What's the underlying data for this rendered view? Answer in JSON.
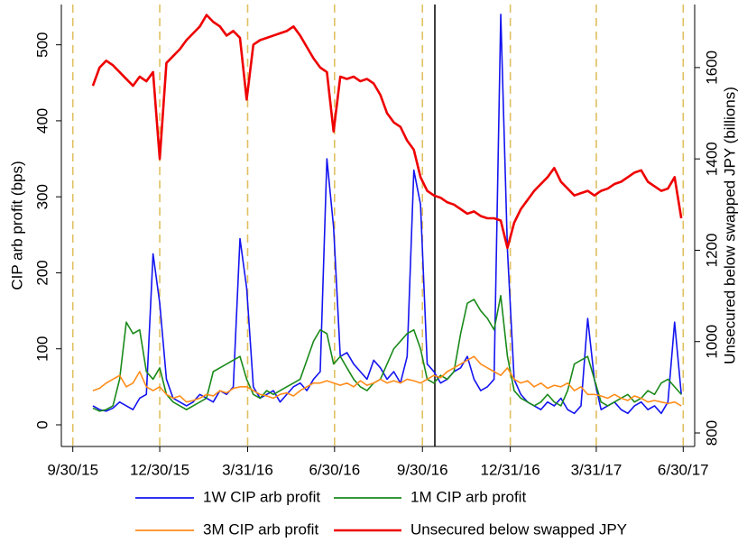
{
  "chart_data": {
    "type": "line",
    "y_label": "CIP arb profit (bps)",
    "y2_label": "Unsecured below swapped JPY (billions)",
    "x": [
      "2015-10-21",
      "2015-10-28",
      "2015-11-04",
      "2015-11-11",
      "2015-11-18",
      "2015-11-25",
      "2015-12-02",
      "2015-12-09",
      "2015-12-16",
      "2015-12-23",
      "2015-12-30",
      "2016-01-06",
      "2016-01-13",
      "2016-01-20",
      "2016-01-27",
      "2016-02-03",
      "2016-02-10",
      "2016-02-17",
      "2016-02-24",
      "2016-03-02",
      "2016-03-09",
      "2016-03-16",
      "2016-03-23",
      "2016-03-30",
      "2016-04-06",
      "2016-04-13",
      "2016-04-20",
      "2016-04-27",
      "2016-05-04",
      "2016-05-11",
      "2016-05-18",
      "2016-05-25",
      "2016-06-01",
      "2016-06-08",
      "2016-06-15",
      "2016-06-22",
      "2016-06-29",
      "2016-07-06",
      "2016-07-13",
      "2016-07-20",
      "2016-07-27",
      "2016-08-03",
      "2016-08-10",
      "2016-08-17",
      "2016-08-24",
      "2016-08-31",
      "2016-09-07",
      "2016-09-14",
      "2016-09-21",
      "2016-09-28",
      "2016-10-05",
      "2016-10-12",
      "2016-10-19",
      "2016-10-26",
      "2016-11-02",
      "2016-11-09",
      "2016-11-16",
      "2016-11-23",
      "2016-11-30",
      "2016-12-07",
      "2016-12-14",
      "2016-12-21",
      "2016-12-28",
      "2017-01-04",
      "2017-01-11",
      "2017-01-18",
      "2017-01-25",
      "2017-02-01",
      "2017-02-08",
      "2017-02-15",
      "2017-02-22",
      "2017-03-01",
      "2017-03-08",
      "2017-03-15",
      "2017-03-22",
      "2017-03-29",
      "2017-04-05",
      "2017-04-12",
      "2017-04-19",
      "2017-04-26",
      "2017-05-03",
      "2017-05-10",
      "2017-05-17",
      "2017-05-24",
      "2017-05-31",
      "2017-06-07",
      "2017-06-14",
      "2017-06-21",
      "2017-06-28"
    ],
    "series": [
      {
        "name": "1W CIP arb profit",
        "color": "#1414f0",
        "values": [
          25,
          20,
          18,
          22,
          30,
          25,
          20,
          35,
          40,
          225,
          160,
          60,
          35,
          30,
          25,
          30,
          40,
          35,
          30,
          45,
          40,
          50,
          245,
          180,
          50,
          35,
          40,
          45,
          30,
          40,
          50,
          55,
          45,
          60,
          70,
          350,
          260,
          90,
          95,
          80,
          70,
          60,
          85,
          75,
          60,
          70,
          55,
          90,
          335,
          290,
          80,
          70,
          55,
          60,
          70,
          75,
          90,
          60,
          45,
          50,
          60,
          540,
          230,
          60,
          40,
          30,
          25,
          20,
          30,
          25,
          35,
          20,
          15,
          25,
          140,
          60,
          20,
          25,
          30,
          20,
          15,
          25,
          30,
          20,
          25,
          15,
          30,
          135,
          40
        ]
      },
      {
        "name": "1M CIP arb profit",
        "color": "#1a8a1a",
        "values": [
          22,
          18,
          20,
          25,
          60,
          135,
          120,
          125,
          70,
          60,
          75,
          40,
          30,
          25,
          20,
          25,
          30,
          35,
          70,
          75,
          80,
          85,
          90,
          60,
          40,
          35,
          45,
          40,
          45,
          50,
          55,
          60,
          85,
          110,
          125,
          120,
          80,
          90,
          75,
          60,
          50,
          45,
          55,
          60,
          80,
          100,
          110,
          120,
          125,
          100,
          60,
          55,
          65,
          60,
          70,
          120,
          160,
          165,
          150,
          140,
          125,
          170,
          90,
          45,
          35,
          30,
          25,
          30,
          40,
          30,
          25,
          45,
          80,
          85,
          90,
          60,
          30,
          25,
          30,
          35,
          40,
          30,
          35,
          45,
          40,
          55,
          60,
          50,
          40
        ]
      },
      {
        "name": "3M CIP arb profit",
        "color": "#ff8c1a",
        "values": [
          45,
          48,
          55,
          60,
          65,
          50,
          55,
          70,
          50,
          45,
          50,
          40,
          35,
          38,
          30,
          32,
          35,
          40,
          38,
          45,
          42,
          48,
          50,
          50,
          45,
          40,
          38,
          35,
          40,
          42,
          38,
          45,
          50,
          55,
          55,
          58,
          55,
          52,
          55,
          50,
          58,
          52,
          55,
          60,
          55,
          58,
          55,
          60,
          58,
          55,
          60,
          65,
          62,
          70,
          75,
          80,
          85,
          90,
          80,
          75,
          70,
          65,
          75,
          60,
          55,
          58,
          50,
          55,
          48,
          52,
          50,
          55,
          45,
          50,
          40,
          40,
          38,
          35,
          40,
          35,
          32,
          38,
          35,
          30,
          32,
          30,
          28,
          30,
          25
        ]
      },
      {
        "name": "Unsecured below swapped JPY",
        "color": "#ee0000",
        "axis": "y2",
        "values": [
          1560,
          1600,
          1615,
          1605,
          1590,
          1575,
          1560,
          1580,
          1570,
          1590,
          1400,
          1610,
          1625,
          1640,
          1660,
          1675,
          1690,
          1715,
          1700,
          1690,
          1670,
          1680,
          1665,
          1530,
          1650,
          1660,
          1665,
          1670,
          1675,
          1680,
          1690,
          1670,
          1645,
          1620,
          1600,
          1590,
          1460,
          1580,
          1575,
          1580,
          1570,
          1575,
          1565,
          1540,
          1500,
          1480,
          1470,
          1440,
          1420,
          1360,
          1330,
          1320,
          1315,
          1305,
          1300,
          1290,
          1280,
          1285,
          1275,
          1270,
          1270,
          1265,
          1205,
          1260,
          1290,
          1310,
          1330,
          1345,
          1360,
          1380,
          1350,
          1335,
          1320,
          1325,
          1330,
          1320,
          1330,
          1335,
          1345,
          1350,
          1360,
          1370,
          1375,
          1350,
          1340,
          1330,
          1335,
          1360,
          1270
        ]
      }
    ],
    "xlim": [
      "2015-09-18",
      "2017-07-12"
    ],
    "xticks": [
      {
        "value": "2015-09-30",
        "label": "9/30/15"
      },
      {
        "value": "2015-12-30",
        "label": "12/30/15"
      },
      {
        "value": "2016-03-31",
        "label": "3/31/16"
      },
      {
        "value": "2016-06-30",
        "label": "6/30/16"
      },
      {
        "value": "2016-09-30",
        "label": "9/30/16"
      },
      {
        "value": "2016-12-31",
        "label": "12/31/16"
      },
      {
        "value": "2017-03-31",
        "label": "3/31/17"
      },
      {
        "value": "2017-06-30",
        "label": "6/30/17"
      }
    ],
    "ylim": [
      -28.5,
      553
    ],
    "yticks": [
      0,
      100,
      200,
      300,
      400,
      500
    ],
    "y2lim": [
      770.4,
      1738
    ],
    "y2ticks": [
      800,
      1000,
      1200,
      1400,
      1600
    ],
    "vline": "2016-10-13",
    "grid": true
  }
}
